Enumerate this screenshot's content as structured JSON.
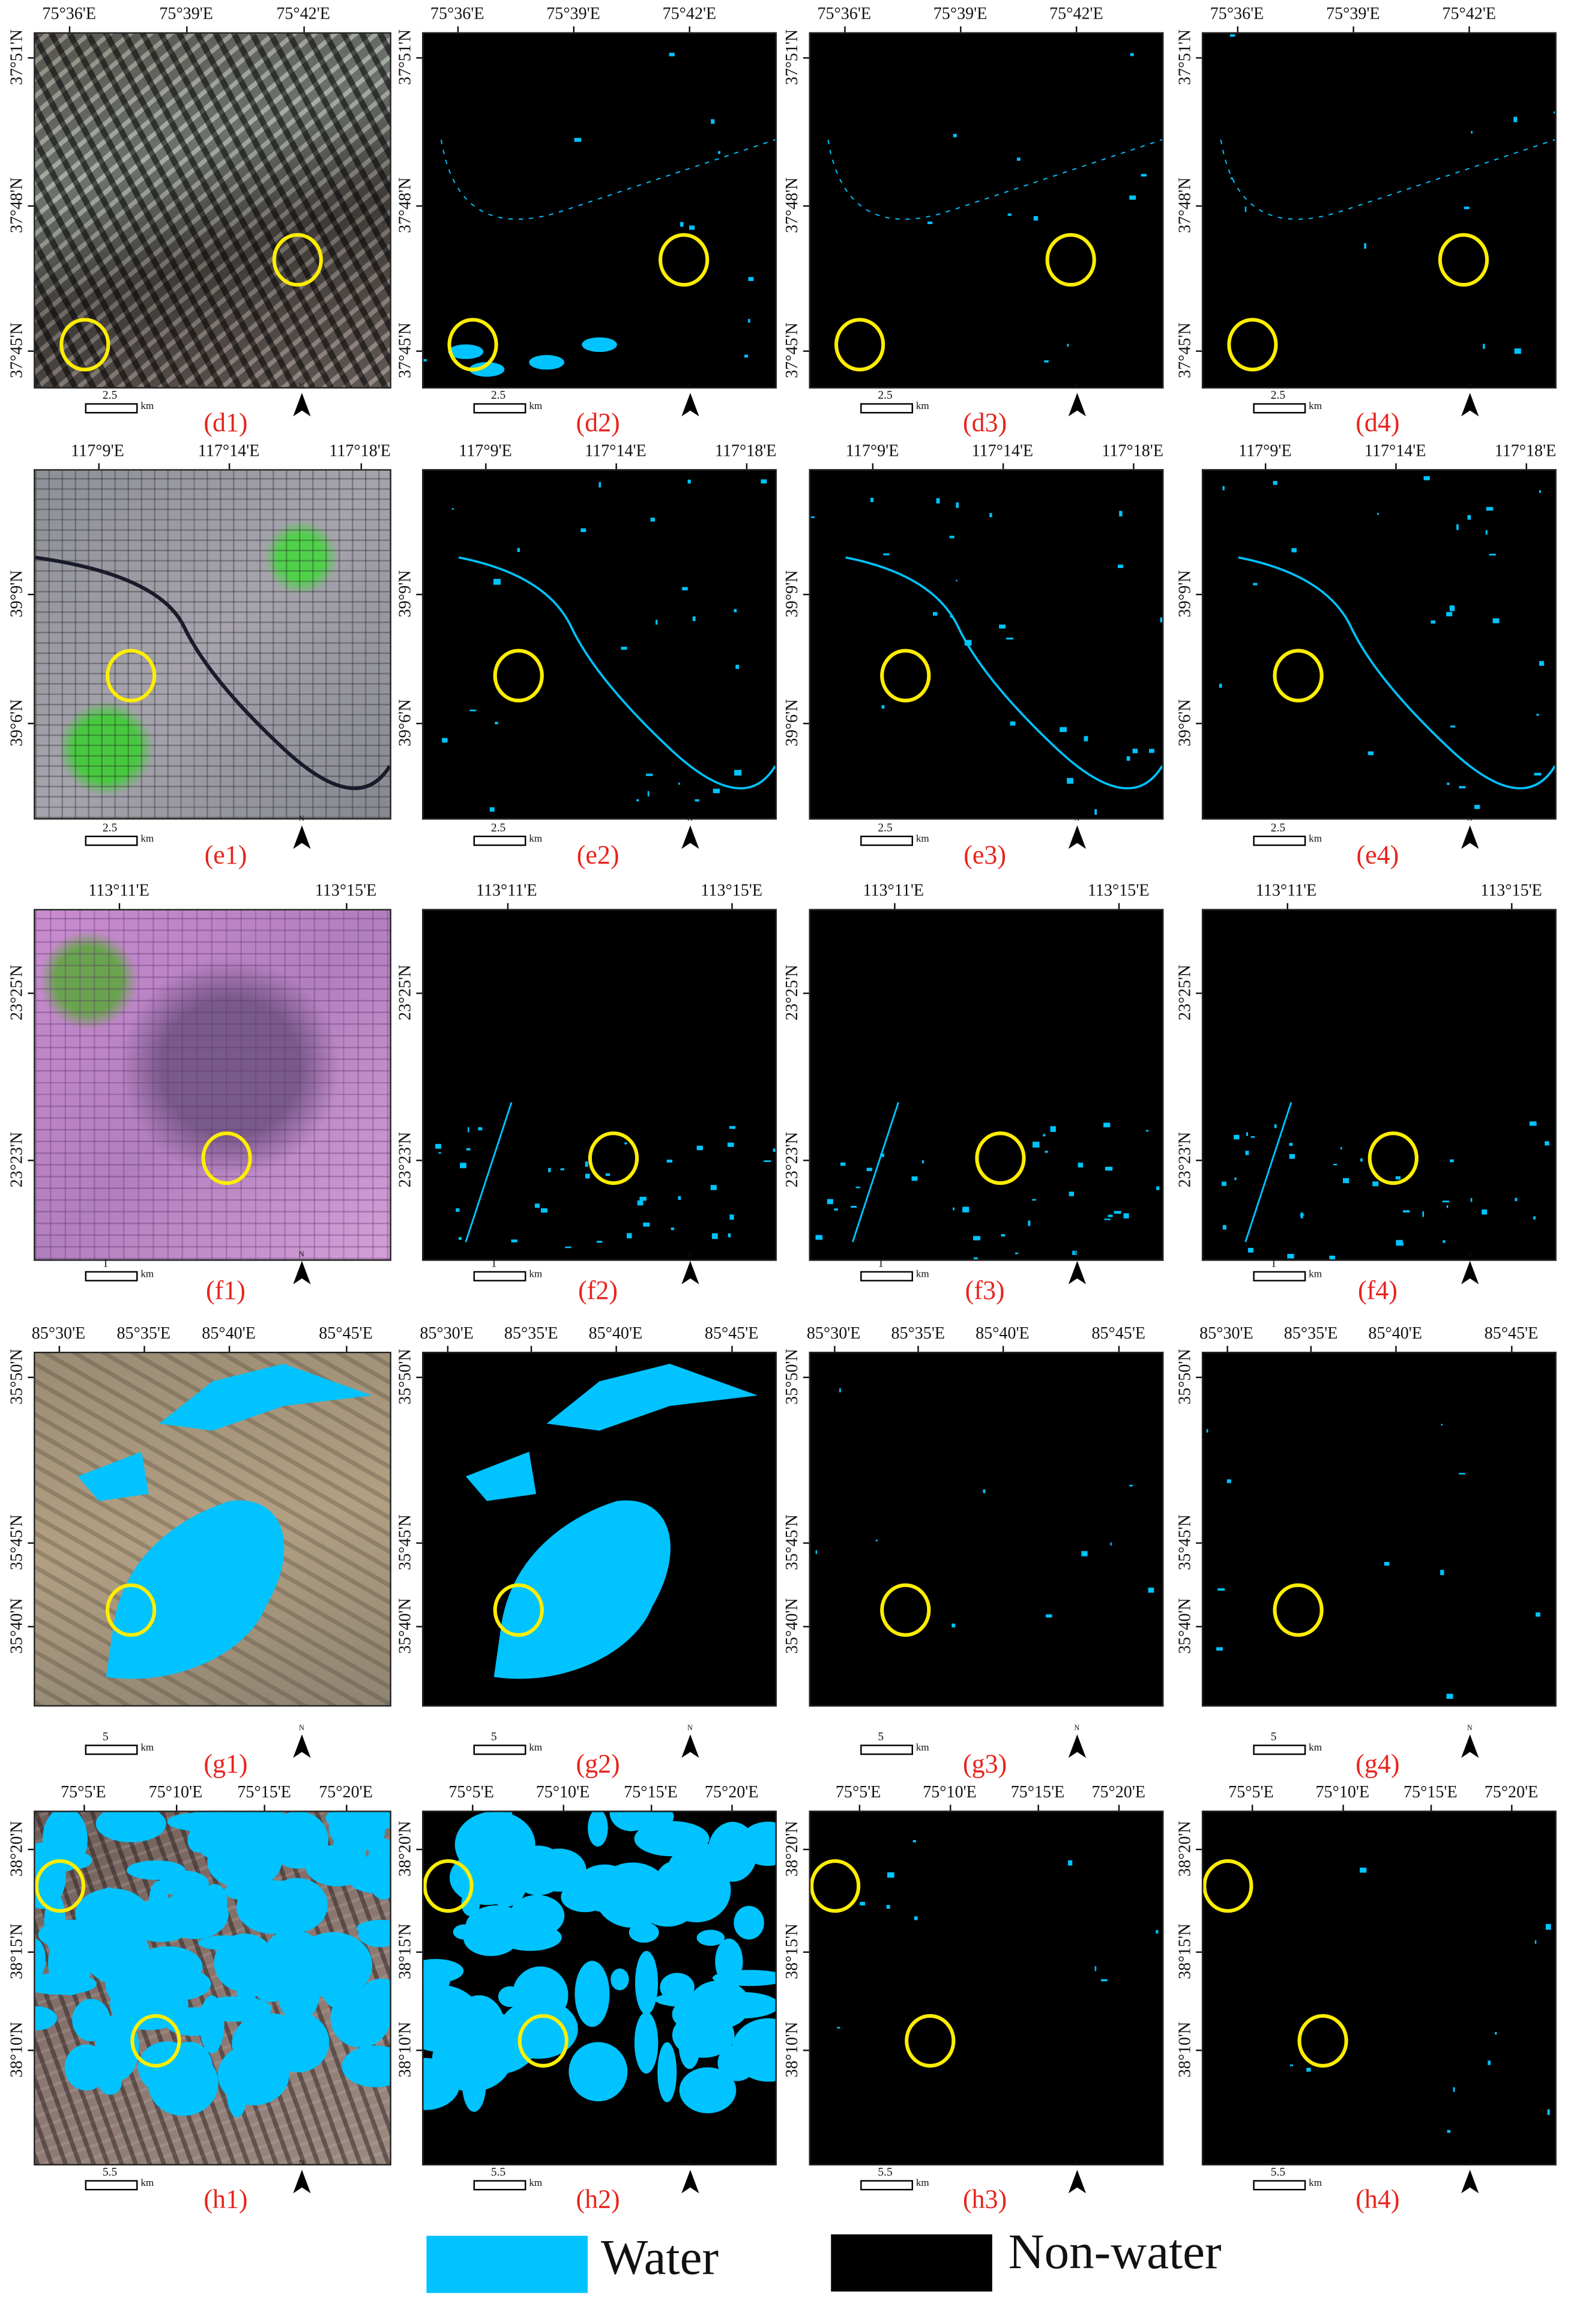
{
  "legend": {
    "items": [
      {
        "label": "Water",
        "color": "#00c3ff"
      },
      {
        "label": "Non-water",
        "color": "#000000"
      }
    ]
  },
  "colors": {
    "water": "#00c3ff",
    "circle": "#ffee00",
    "panel_label": "#e8231d"
  },
  "north_label": "N",
  "scale_unit": "km",
  "rows": [
    {
      "id": "d",
      "lon_labels": [
        "75°36'E",
        "75°39'E",
        "75°42'E"
      ],
      "lat_labels": [
        "37°51'N",
        "37°48'N",
        "37°45'N"
      ],
      "scale": "2.5",
      "panels": [
        "(d1)",
        "(d2)",
        "(d3)",
        "(d4)"
      ]
    },
    {
      "id": "e",
      "lon_labels": [
        "117°9'E",
        "117°14'E",
        "117°18'E"
      ],
      "lat_labels": [
        "39°9'N",
        "39°6'N"
      ],
      "scale": "2.5",
      "panels": [
        "(e1)",
        "(e2)",
        "(e3)",
        "(e4)"
      ]
    },
    {
      "id": "f",
      "lon_labels": [
        "113°11'E",
        "113°15'E"
      ],
      "lat_labels": [
        "23°25'N",
        "23°23'N"
      ],
      "scale": "1",
      "panels": [
        "(f1)",
        "(f2)",
        "(f3)",
        "(f4)"
      ]
    },
    {
      "id": "g",
      "lon_labels": [
        "85°30'E",
        "85°35'E",
        "85°40'E",
        "85°45'E"
      ],
      "lat_labels": [
        "35°50'N",
        "35°45'N",
        "35°40'N"
      ],
      "scale": "5",
      "panels": [
        "(g1)",
        "(g2)",
        "(g3)",
        "(g4)"
      ]
    },
    {
      "id": "h",
      "lon_labels": [
        "75°5'E",
        "75°10'E",
        "75°15'E",
        "75°20'E"
      ],
      "lat_labels": [
        "38°20'N",
        "38°15'N",
        "38°10'N"
      ],
      "scale": "5.5",
      "panels": [
        "(h1)",
        "(h2)",
        "(h3)",
        "(h4)"
      ]
    }
  ]
}
